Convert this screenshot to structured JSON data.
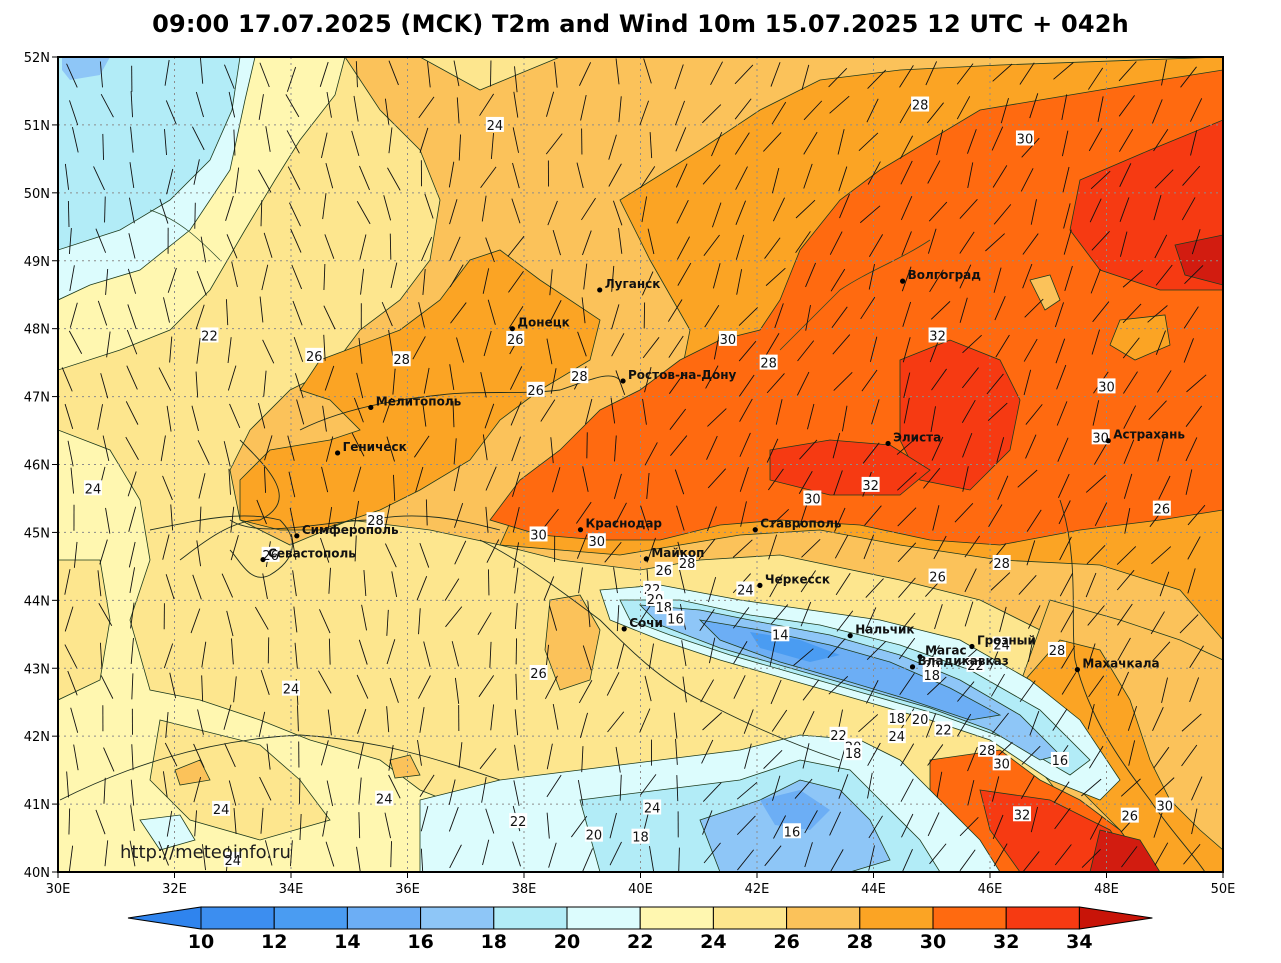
{
  "title": "09:00 17.07.2025 (MCK) T2m and Wind 10m 15.07.2025 12 UTC + 042h",
  "watermark": "http://meteoinfo.ru",
  "axes": {
    "lon_ticks": [
      "30E",
      "32E",
      "34E",
      "36E",
      "38E",
      "40E",
      "42E",
      "44E",
      "46E",
      "48E",
      "50E"
    ],
    "lat_ticks": [
      "52N",
      "51N",
      "50N",
      "49N",
      "48N",
      "47N",
      "46N",
      "45N",
      "44N",
      "43N",
      "42N",
      "41N",
      "40N"
    ],
    "lon_range": [
      30,
      50
    ],
    "lat_range": [
      40,
      52
    ]
  },
  "colorbar": {
    "labels": [
      "10",
      "12",
      "14",
      "16",
      "18",
      "20",
      "22",
      "24",
      "26",
      "28",
      "30",
      "32",
      "34"
    ],
    "colors": [
      "#3c8ef0",
      "#4a9cf2",
      "#6caef5",
      "#8ec6f7",
      "#b2ecf7",
      "#dcfcfd",
      "#fff7b0",
      "#fde68e",
      "#fbc25a",
      "#fba424",
      "#ff6a10",
      "#f63a12",
      "#d21c10"
    ],
    "under_color": "#2f84ee",
    "over_color": "#c81408"
  },
  "cities": [
    {
      "name": "Луганск",
      "lon": 39.3,
      "lat": 48.57
    },
    {
      "name": "Донецк",
      "lon": 37.8,
      "lat": 48.0
    },
    {
      "name": "Волгоград",
      "lon": 44.5,
      "lat": 48.7
    },
    {
      "name": "Ростов-на-Дону",
      "lon": 39.7,
      "lat": 47.23
    },
    {
      "name": "Мелитополь",
      "lon": 35.37,
      "lat": 46.84
    },
    {
      "name": "Геническ",
      "lon": 34.8,
      "lat": 46.17
    },
    {
      "name": "Элиста",
      "lon": 44.25,
      "lat": 46.31
    },
    {
      "name": "Астрахань",
      "lon": 48.03,
      "lat": 46.35
    },
    {
      "name": "Симферополь",
      "lon": 34.1,
      "lat": 44.95
    },
    {
      "name": "Краснодар",
      "lon": 38.97,
      "lat": 45.04
    },
    {
      "name": "Ставрополь",
      "lon": 41.97,
      "lat": 45.04
    },
    {
      "name": "Севастополь",
      "lon": 33.52,
      "lat": 44.6
    },
    {
      "name": "Майкоп",
      "lon": 40.1,
      "lat": 44.61
    },
    {
      "name": "Черкесск",
      "lon": 42.05,
      "lat": 44.22
    },
    {
      "name": "Сочи",
      "lon": 39.72,
      "lat": 43.58
    },
    {
      "name": "Нальчик",
      "lon": 43.6,
      "lat": 43.48
    },
    {
      "name": "Магас",
      "lon": 44.8,
      "lat": 43.17
    },
    {
      "name": "Грозный",
      "lon": 45.69,
      "lat": 43.32
    },
    {
      "name": "Владикавказ",
      "lon": 44.67,
      "lat": 43.02
    },
    {
      "name": "Махачкала",
      "lon": 47.5,
      "lat": 42.98
    }
  ],
  "contour_labels": [
    {
      "text": "24",
      "lon": 37.5,
      "lat": 51.0
    },
    {
      "text": "28",
      "lon": 44.8,
      "lat": 51.3
    },
    {
      "text": "30",
      "lon": 46.6,
      "lat": 50.8
    },
    {
      "text": "22",
      "lon": 32.6,
      "lat": 47.9
    },
    {
      "text": "26",
      "lon": 34.4,
      "lat": 47.6
    },
    {
      "text": "28",
      "lon": 35.9,
      "lat": 47.55
    },
    {
      "text": "26",
      "lon": 37.85,
      "lat": 47.85
    },
    {
      "text": "28",
      "lon": 38.95,
      "lat": 47.3
    },
    {
      "text": "26",
      "lon": 38.2,
      "lat": 47.1
    },
    {
      "text": "30",
      "lon": 41.5,
      "lat": 47.85
    },
    {
      "text": "28",
      "lon": 42.2,
      "lat": 47.5
    },
    {
      "text": "32",
      "lon": 45.1,
      "lat": 47.9
    },
    {
      "text": "30",
      "lon": 48.0,
      "lat": 47.15
    },
    {
      "text": "30",
      "lon": 47.9,
      "lat": 46.4
    },
    {
      "text": "32",
      "lon": 43.95,
      "lat": 45.7
    },
    {
      "text": "30",
      "lon": 42.95,
      "lat": 45.5
    },
    {
      "text": "26",
      "lon": 48.95,
      "lat": 45.35
    },
    {
      "text": "24",
      "lon": 30.6,
      "lat": 45.65
    },
    {
      "text": "28",
      "lon": 35.45,
      "lat": 45.18
    },
    {
      "text": "26",
      "lon": 33.65,
      "lat": 44.67
    },
    {
      "text": "30",
      "lon": 38.25,
      "lat": 44.97
    },
    {
      "text": "30",
      "lon": 39.25,
      "lat": 44.87
    },
    {
      "text": "26",
      "lon": 40.4,
      "lat": 44.45
    },
    {
      "text": "28",
      "lon": 40.8,
      "lat": 44.55
    },
    {
      "text": "26",
      "lon": 45.1,
      "lat": 44.35
    },
    {
      "text": "28",
      "lon": 46.2,
      "lat": 44.55
    },
    {
      "text": "24",
      "lon": 41.8,
      "lat": 44.16
    },
    {
      "text": "22",
      "lon": 40.2,
      "lat": 44.17
    },
    {
      "text": "20",
      "lon": 40.25,
      "lat": 44.02
    },
    {
      "text": "18",
      "lon": 40.4,
      "lat": 43.9
    },
    {
      "text": "16",
      "lon": 40.6,
      "lat": 43.73
    },
    {
      "text": "14",
      "lon": 42.4,
      "lat": 43.5
    },
    {
      "text": "24",
      "lon": 46.2,
      "lat": 43.35
    },
    {
      "text": "28",
      "lon": 47.15,
      "lat": 43.27
    },
    {
      "text": "20",
      "lon": 45.0,
      "lat": 43.05
    },
    {
      "text": "18",
      "lon": 45.0,
      "lat": 42.9
    },
    {
      "text": "22",
      "lon": 45.75,
      "lat": 43.05
    },
    {
      "text": "18",
      "lon": 44.4,
      "lat": 42.27
    },
    {
      "text": "20",
      "lon": 44.8,
      "lat": 42.25
    },
    {
      "text": "22",
      "lon": 45.2,
      "lat": 42.1
    },
    {
      "text": "24",
      "lon": 44.4,
      "lat": 42.0
    },
    {
      "text": "22",
      "lon": 43.4,
      "lat": 42.02
    },
    {
      "text": "20",
      "lon": 43.65,
      "lat": 41.85
    },
    {
      "text": "18",
      "lon": 43.65,
      "lat": 41.75
    },
    {
      "text": "28",
      "lon": 45.95,
      "lat": 41.8
    },
    {
      "text": "30",
      "lon": 46.2,
      "lat": 41.6
    },
    {
      "text": "16",
      "lon": 47.2,
      "lat": 41.65
    },
    {
      "text": "32",
      "lon": 46.55,
      "lat": 40.85
    },
    {
      "text": "26",
      "lon": 48.4,
      "lat": 40.83
    },
    {
      "text": "30",
      "lon": 49.0,
      "lat": 40.98
    },
    {
      "text": "26",
      "lon": 38.25,
      "lat": 42.93
    },
    {
      "text": "24",
      "lon": 34.0,
      "lat": 42.7
    },
    {
      "text": "24",
      "lon": 32.8,
      "lat": 40.93
    },
    {
      "text": "24",
      "lon": 35.6,
      "lat": 41.08
    },
    {
      "text": "22",
      "lon": 37.9,
      "lat": 40.75
    },
    {
      "text": "24",
      "lon": 40.2,
      "lat": 40.95
    },
    {
      "text": "20",
      "lon": 39.2,
      "lat": 40.55
    },
    {
      "text": "18",
      "lon": 40.0,
      "lat": 40.52
    },
    {
      "text": "16",
      "lon": 42.6,
      "lat": 40.6
    },
    {
      "text": "24",
      "lon": 33.0,
      "lat": 40.18
    }
  ]
}
